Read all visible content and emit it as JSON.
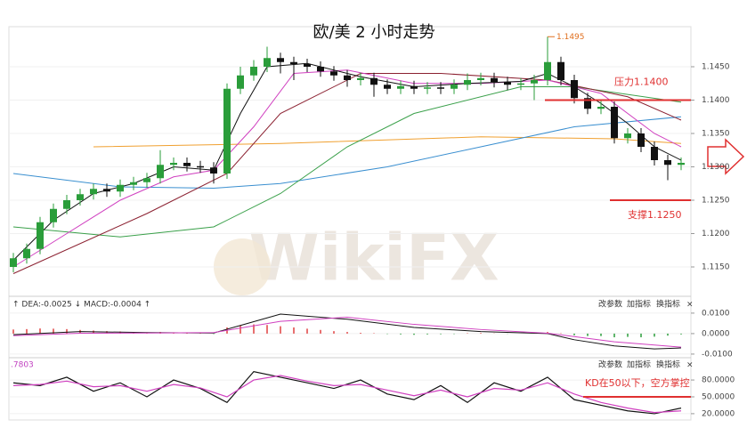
{
  "chart_data": {
    "type": "candlestick",
    "title": "欧/美 2 小时走势",
    "watermark": "WikiFX",
    "open": [
      1.115,
      1.1163,
      1.1177,
      1.1217,
      1.1237,
      1.125,
      1.1259,
      1.1267,
      1.1263,
      1.1273,
      1.1277,
      1.1283,
      1.1303,
      1.1306,
      1.1301,
      1.1299,
      1.129,
      1.1417,
      1.1437,
      1.145,
      1.1463,
      1.1457,
      1.1454,
      1.145,
      1.1443,
      1.1437,
      1.143,
      1.1433,
      1.1423,
      1.1417,
      1.1421,
      1.1417,
      1.1419,
      1.1417,
      1.1423,
      1.143,
      1.1433,
      1.1427,
      1.1423,
      1.1425,
      1.143,
      1.1457,
      1.143,
      1.1403,
      1.1387,
      1.139,
      1.1343,
      1.135,
      1.133,
      1.131,
      1.1303
    ],
    "high": [
      1.1171,
      1.1185,
      1.1225,
      1.1245,
      1.1258,
      1.1267,
      1.1275,
      1.1275,
      1.1281,
      1.1285,
      1.1291,
      1.1325,
      1.1314,
      1.1314,
      1.1309,
      1.1307,
      1.1425,
      1.145,
      1.146,
      1.148,
      1.1471,
      1.1465,
      1.1462,
      1.1458,
      1.1451,
      1.1445,
      1.1441,
      1.1441,
      1.1431,
      1.1429,
      1.1429,
      1.1427,
      1.1427,
      1.1431,
      1.144,
      1.1441,
      1.1441,
      1.1435,
      1.1433,
      1.1438,
      1.1495,
      1.1465,
      1.1438,
      1.1411,
      1.14,
      1.1398,
      1.1358,
      1.1358,
      1.1338,
      1.1318,
      1.1314
    ],
    "low": [
      1.1142,
      1.1155,
      1.1169,
      1.1209,
      1.1229,
      1.1242,
      1.1251,
      1.1255,
      1.1255,
      1.1265,
      1.1269,
      1.1275,
      1.1295,
      1.1293,
      1.1291,
      1.1275,
      1.1282,
      1.1409,
      1.1429,
      1.1442,
      1.144,
      1.143,
      1.1442,
      1.1435,
      1.1429,
      1.142,
      1.1422,
      1.1405,
      1.1409,
      1.1409,
      1.1409,
      1.1409,
      1.1409,
      1.1409,
      1.1415,
      1.1422,
      1.1419,
      1.1415,
      1.1415,
      1.14,
      1.1422,
      1.1422,
      1.1395,
      1.1379,
      1.1379,
      1.1335,
      1.1335,
      1.1322,
      1.1302,
      1.128,
      1.1295
    ],
    "close": [
      1.1163,
      1.1177,
      1.1217,
      1.1237,
      1.125,
      1.1259,
      1.1267,
      1.1263,
      1.1273,
      1.1277,
      1.1283,
      1.1303,
      1.1306,
      1.1301,
      1.1299,
      1.129,
      1.1417,
      1.1437,
      1.145,
      1.1463,
      1.1457,
      1.1454,
      1.145,
      1.1443,
      1.1437,
      1.143,
      1.1433,
      1.1423,
      1.1417,
      1.1421,
      1.1417,
      1.1419,
      1.1417,
      1.1423,
      1.143,
      1.1433,
      1.1427,
      1.1423,
      1.1425,
      1.143,
      1.1457,
      1.143,
      1.1403,
      1.1387,
      1.139,
      1.1343,
      1.135,
      1.133,
      1.131,
      1.1303,
      1.1306
    ],
    "up_color": "#2a9d3a",
    "down_color": "#111111",
    "ylim": [
      1.1106,
      1.151
    ],
    "yticks": [
      {
        "value": 1.115,
        "label": "1.1150"
      },
      {
        "value": 1.12,
        "label": "1.1200"
      },
      {
        "value": 1.125,
        "label": "1.1250"
      },
      {
        "value": 1.13,
        "label": "1.1300"
      },
      {
        "value": 1.135,
        "label": "1.1350"
      },
      {
        "value": 1.14,
        "label": "1.1400"
      },
      {
        "value": 1.145,
        "label": "1.1450"
      }
    ],
    "lines": [
      {
        "color": "#f0a030",
        "x": [
          6,
          20,
          35,
          45,
          50
        ],
        "values": [
          1.133,
          1.1335,
          1.1345,
          1.1342,
          1.1335
        ]
      },
      {
        "color": "#3a8fd0",
        "x": [
          0,
          8,
          15,
          20,
          28,
          35,
          42,
          50
        ],
        "values": [
          1.129,
          1.127,
          1.1268,
          1.1275,
          1.13,
          1.133,
          1.136,
          1.1375
        ]
      },
      {
        "color": "#3aa04a",
        "x": [
          0,
          8,
          15,
          20,
          25,
          30,
          38,
          42,
          50
        ],
        "values": [
          1.121,
          1.1195,
          1.121,
          1.126,
          1.133,
          1.138,
          1.142,
          1.142,
          1.1397
        ]
      },
      {
        "color": "#8b2030",
        "x": [
          0,
          10,
          16,
          20,
          26,
          32,
          40,
          46,
          50
        ],
        "values": [
          1.114,
          1.123,
          1.129,
          1.138,
          1.144,
          1.144,
          1.143,
          1.1405,
          1.137
        ]
      },
      {
        "color": "#d040c0",
        "x": [
          0,
          4,
          8,
          12,
          15,
          18,
          21,
          25,
          30,
          35,
          40,
          44,
          48,
          50
        ],
        "values": [
          1.115,
          1.12,
          1.125,
          1.1285,
          1.1295,
          1.136,
          1.144,
          1.1445,
          1.1425,
          1.1425,
          1.143,
          1.141,
          1.135,
          1.133
        ]
      },
      {
        "color": "#111111",
        "x": [
          0,
          3,
          6,
          9,
          12,
          15,
          17,
          19,
          22,
          26,
          30,
          34,
          38,
          40,
          42,
          44,
          46,
          48,
          50
        ],
        "values": [
          1.116,
          1.122,
          1.126,
          1.1275,
          1.13,
          1.1295,
          1.138,
          1.145,
          1.1455,
          1.1435,
          1.142,
          1.1425,
          1.1428,
          1.144,
          1.142,
          1.1395,
          1.1365,
          1.133,
          1.131
        ]
      }
    ],
    "peak": 1.1495,
    "resistance": {
      "value": 1.14,
      "label": "压力1.1400",
      "color": "#e03030"
    },
    "support": {
      "value": 1.125,
      "label": "支撑1.1250",
      "color": "#e03030"
    },
    "toolbar": [
      "改参数",
      "加指标",
      "换指标",
      "×"
    ],
    "macd": {
      "header": "↑ DEA:-0.0025 ↓ MACD:-0.0004 ↑",
      "ylim": [
        -0.0109,
        0.013
      ],
      "yticks": [
        {
          "value": -0.01,
          "label": "-0.0100"
        },
        {
          "value": 0,
          "label": "0.0000"
        },
        {
          "value": 0.01,
          "label": "0.0100"
        }
      ],
      "up_color": "#e04040",
      "down_color": "#2a9d3a",
      "histogram": [
        0.002,
        0.0022,
        0.0025,
        0.0024,
        0.0022,
        0.0018,
        0.0015,
        0.0012,
        0.001,
        0.0008,
        0.0006,
        0.0008,
        0.0006,
        0.0004,
        0.0002,
        -0.0002,
        0.003,
        0.004,
        0.0045,
        0.0042,
        0.0036,
        0.003,
        0.0024,
        0.0018,
        0.0012,
        0.0008,
        0.0004,
        0.0002,
        -0.0002,
        -0.0004,
        -0.0006,
        -0.0004,
        -0.0003,
        -0.0002,
        0.0002,
        0.0003,
        0.0001,
        -0.0001,
        0.0,
        0.0001,
        0.0008,
        0.0002,
        -0.0008,
        -0.0012,
        -0.0012,
        -0.0018,
        -0.0016,
        -0.0018,
        -0.0015,
        -0.001,
        -0.0004
      ],
      "lines": [
        {
          "color": "#111111",
          "x": [
            0,
            5,
            10,
            15,
            17,
            20,
            25,
            30,
            35,
            40,
            42,
            45,
            48,
            50
          ],
          "values": [
            -0.0005,
            0.001,
            0.0005,
            0.0003,
            0.004,
            0.0095,
            0.007,
            0.003,
            0.001,
            0.0,
            -0.003,
            -0.006,
            -0.0075,
            -0.007
          ]
        },
        {
          "color": "#d040c0",
          "x": [
            0,
            5,
            10,
            15,
            20,
            25,
            30,
            35,
            40,
            45,
            50
          ],
          "values": [
            -0.001,
            0.0002,
            0.0003,
            0.0005,
            0.006,
            0.008,
            0.0045,
            0.002,
            0.0002,
            -0.004,
            -0.0066
          ]
        }
      ]
    },
    "kd": {
      "header": ".7803",
      "ylim": [
        4,
        115
      ],
      "yticks": [
        {
          "value": 20,
          "label": "20.0000"
        },
        {
          "value": 50,
          "label": "50.0000"
        },
        {
          "value": 80,
          "label": "80.0000"
        }
      ],
      "lines": [
        {
          "color": "#111111",
          "x": [
            0,
            2,
            4,
            6,
            8,
            10,
            12,
            14,
            16,
            18,
            20,
            22,
            24,
            26,
            28,
            30,
            32,
            34,
            36,
            38,
            40,
            42,
            44,
            46,
            48,
            50
          ],
          "values": [
            75,
            70,
            85,
            60,
            75,
            50,
            80,
            65,
            40,
            95,
            85,
            75,
            65,
            80,
            55,
            45,
            70,
            40,
            75,
            60,
            85,
            45,
            35,
            25,
            20,
            30
          ]
        },
        {
          "color": "#d040c0",
          "x": [
            0,
            2,
            4,
            6,
            8,
            10,
            12,
            14,
            16,
            18,
            20,
            22,
            24,
            26,
            28,
            30,
            32,
            34,
            36,
            38,
            40,
            42,
            44,
            46,
            48,
            50
          ],
          "values": [
            70,
            72,
            78,
            68,
            70,
            60,
            72,
            66,
            50,
            80,
            88,
            78,
            70,
            72,
            62,
            52,
            62,
            50,
            65,
            62,
            75,
            55,
            40,
            30,
            22,
            25
          ]
        }
      ],
      "note": {
        "value": 50,
        "label": "KD在50以下，空方掌控",
        "color": "#e03030"
      }
    }
  }
}
